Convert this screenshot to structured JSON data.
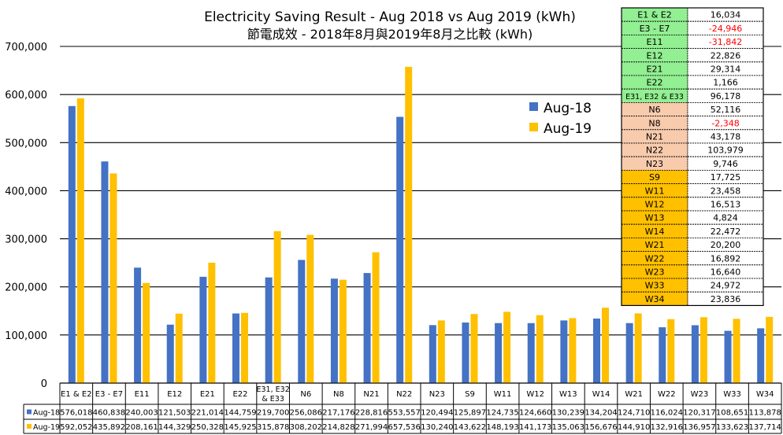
{
  "chart_data": {
    "type": "bar",
    "title": "Electricity Saving Result - Aug 2018 vs Aug 2019 (kWh)",
    "subtitle": "節電成效 - 2018年8月與2019年8月之比較 (kWh)",
    "ylim": [
      0,
      700000
    ],
    "y_ticks": [
      "0",
      "100,000",
      "200,000",
      "300,000",
      "400,000",
      "500,000",
      "600,000",
      "700,000"
    ],
    "grid": true,
    "legend_position": "top-right",
    "categories": [
      "E1 & E2",
      "E3 - E7",
      "E11",
      "E12",
      "E21",
      "E22",
      "E31, E32 & E33",
      "N6",
      "N8",
      "N21",
      "N22",
      "N23",
      "S9",
      "W11",
      "W12",
      "W13",
      "W14",
      "W21",
      "W22",
      "W23",
      "W33",
      "W34"
    ],
    "category_lines": [
      [
        "E1 & E2"
      ],
      [
        "E3 - E7"
      ],
      [
        "E11"
      ],
      [
        "E12"
      ],
      [
        "E21"
      ],
      [
        "E22"
      ],
      [
        "E31, E32",
        "& E33"
      ],
      [
        "N6"
      ],
      [
        "N8"
      ],
      [
        "N21"
      ],
      [
        "N22"
      ],
      [
        "N23"
      ],
      [
        "S9"
      ],
      [
        "W11"
      ],
      [
        "W12"
      ],
      [
        "W13"
      ],
      [
        "W14"
      ],
      [
        "W21"
      ],
      [
        "W22"
      ],
      [
        "W23"
      ],
      [
        "W33"
      ],
      [
        "W34"
      ]
    ],
    "series": [
      {
        "name": "Aug-18",
        "color": "#4472C4",
        "values": [
          576018,
          460838,
          240003,
          121503,
          221014,
          144759,
          219700,
          256086,
          217176,
          228816,
          553557,
          120494,
          125897,
          124735,
          124660,
          130239,
          134204,
          124710,
          116024,
          120317,
          108651,
          113878
        ],
        "labels": [
          "576,018",
          "460,838",
          "240,003",
          "121,503",
          "221,014",
          "144,759",
          "219,700",
          "256,086",
          "217,176",
          "228,816",
          "553,557",
          "120,494",
          "125,897",
          "124,735",
          "124,660",
          "130,239",
          "134,204",
          "124,710",
          "116,024",
          "120,317",
          "108,651",
          "113,878"
        ]
      },
      {
        "name": "Aug-19",
        "color": "#FFC000",
        "values": [
          592052,
          435892,
          208161,
          144329,
          250328,
          145925,
          315878,
          308202,
          214828,
          271994,
          657536,
          130240,
          143622,
          148193,
          141173,
          135063,
          156676,
          144910,
          132916,
          136957,
          133623,
          137714
        ],
        "labels": [
          "592,052",
          "435,892",
          "208,161",
          "144,329",
          "250,328",
          "145,925",
          "315,878",
          "308,202",
          "214,828",
          "271,994",
          "657,536",
          "130,240",
          "143,622",
          "148,193",
          "141,173",
          "135,063",
          "156,676",
          "144,910",
          "132,916",
          "136,957",
          "133,623",
          "137,714"
        ]
      }
    ],
    "saving_table": {
      "rows": [
        {
          "zone": "E1 & E2",
          "value": "16,034",
          "group": "E",
          "negative": false
        },
        {
          "zone": "E3 - E7",
          "value": "-24,946",
          "group": "E",
          "negative": true
        },
        {
          "zone": "E11",
          "value": "-31,842",
          "group": "E",
          "negative": true
        },
        {
          "zone": "E12",
          "value": "22,826",
          "group": "E",
          "negative": false
        },
        {
          "zone": "E21",
          "value": "29,314",
          "group": "E",
          "negative": false
        },
        {
          "zone": "E22",
          "value": "1,166",
          "group": "E",
          "negative": false
        },
        {
          "zone": "E31, E32 & E33",
          "value": "96,178",
          "group": "E",
          "negative": false
        },
        {
          "zone": "N6",
          "value": "52,116",
          "group": "N",
          "negative": false
        },
        {
          "zone": "N8",
          "value": "-2,348",
          "group": "N",
          "negative": true
        },
        {
          "zone": "N21",
          "value": "43,178",
          "group": "N",
          "negative": false
        },
        {
          "zone": "N22",
          "value": "103,979",
          "group": "N",
          "negative": false
        },
        {
          "zone": "N23",
          "value": "9,746",
          "group": "N",
          "negative": false
        },
        {
          "zone": "S9",
          "value": "17,725",
          "group": "SW",
          "negative": false
        },
        {
          "zone": "W11",
          "value": "23,458",
          "group": "SW",
          "negative": false
        },
        {
          "zone": "W12",
          "value": "16,513",
          "group": "SW",
          "negative": false
        },
        {
          "zone": "W13",
          "value": "4,824",
          "group": "SW",
          "negative": false
        },
        {
          "zone": "W14",
          "value": "22,472",
          "group": "SW",
          "negative": false
        },
        {
          "zone": "W21",
          "value": "20,200",
          "group": "SW",
          "negative": false
        },
        {
          "zone": "W22",
          "value": "16,892",
          "group": "SW",
          "negative": false
        },
        {
          "zone": "W23",
          "value": "16,640",
          "group": "SW",
          "negative": false
        },
        {
          "zone": "W33",
          "value": "24,972",
          "group": "SW",
          "negative": false
        },
        {
          "zone": "W34",
          "value": "23,836",
          "group": "SW",
          "negative": false
        }
      ],
      "group_colors": {
        "E": "#92EF92",
        "N": "#F8CBAD",
        "SW": "#FFC000"
      },
      "negative_color": "#FF0000"
    }
  }
}
